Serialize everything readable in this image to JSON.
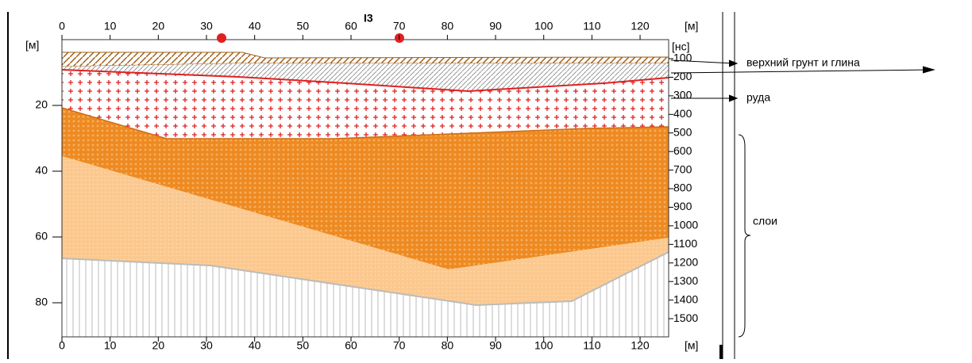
{
  "header": {
    "top_left_unit": "[м]",
    "top_right_unit": "[м]",
    "time_unit": "[нс]",
    "bottom_right_unit": "[м]",
    "marker_label": "I3"
  },
  "x_axis": {
    "ticks": [
      0,
      10,
      20,
      30,
      40,
      50,
      60,
      70,
      80,
      90,
      100,
      110,
      120
    ]
  },
  "depth_axis": {
    "ticks": [
      20,
      40,
      60,
      80
    ]
  },
  "time_axis": {
    "ticks": [
      100,
      200,
      300,
      400,
      500,
      600,
      700,
      800,
      900,
      1000,
      1100,
      1200,
      1300,
      1400,
      1500
    ]
  },
  "annotations": {
    "topsoil": "верхний грунт и глина",
    "ore": "руда",
    "layers": "слои"
  }
}
